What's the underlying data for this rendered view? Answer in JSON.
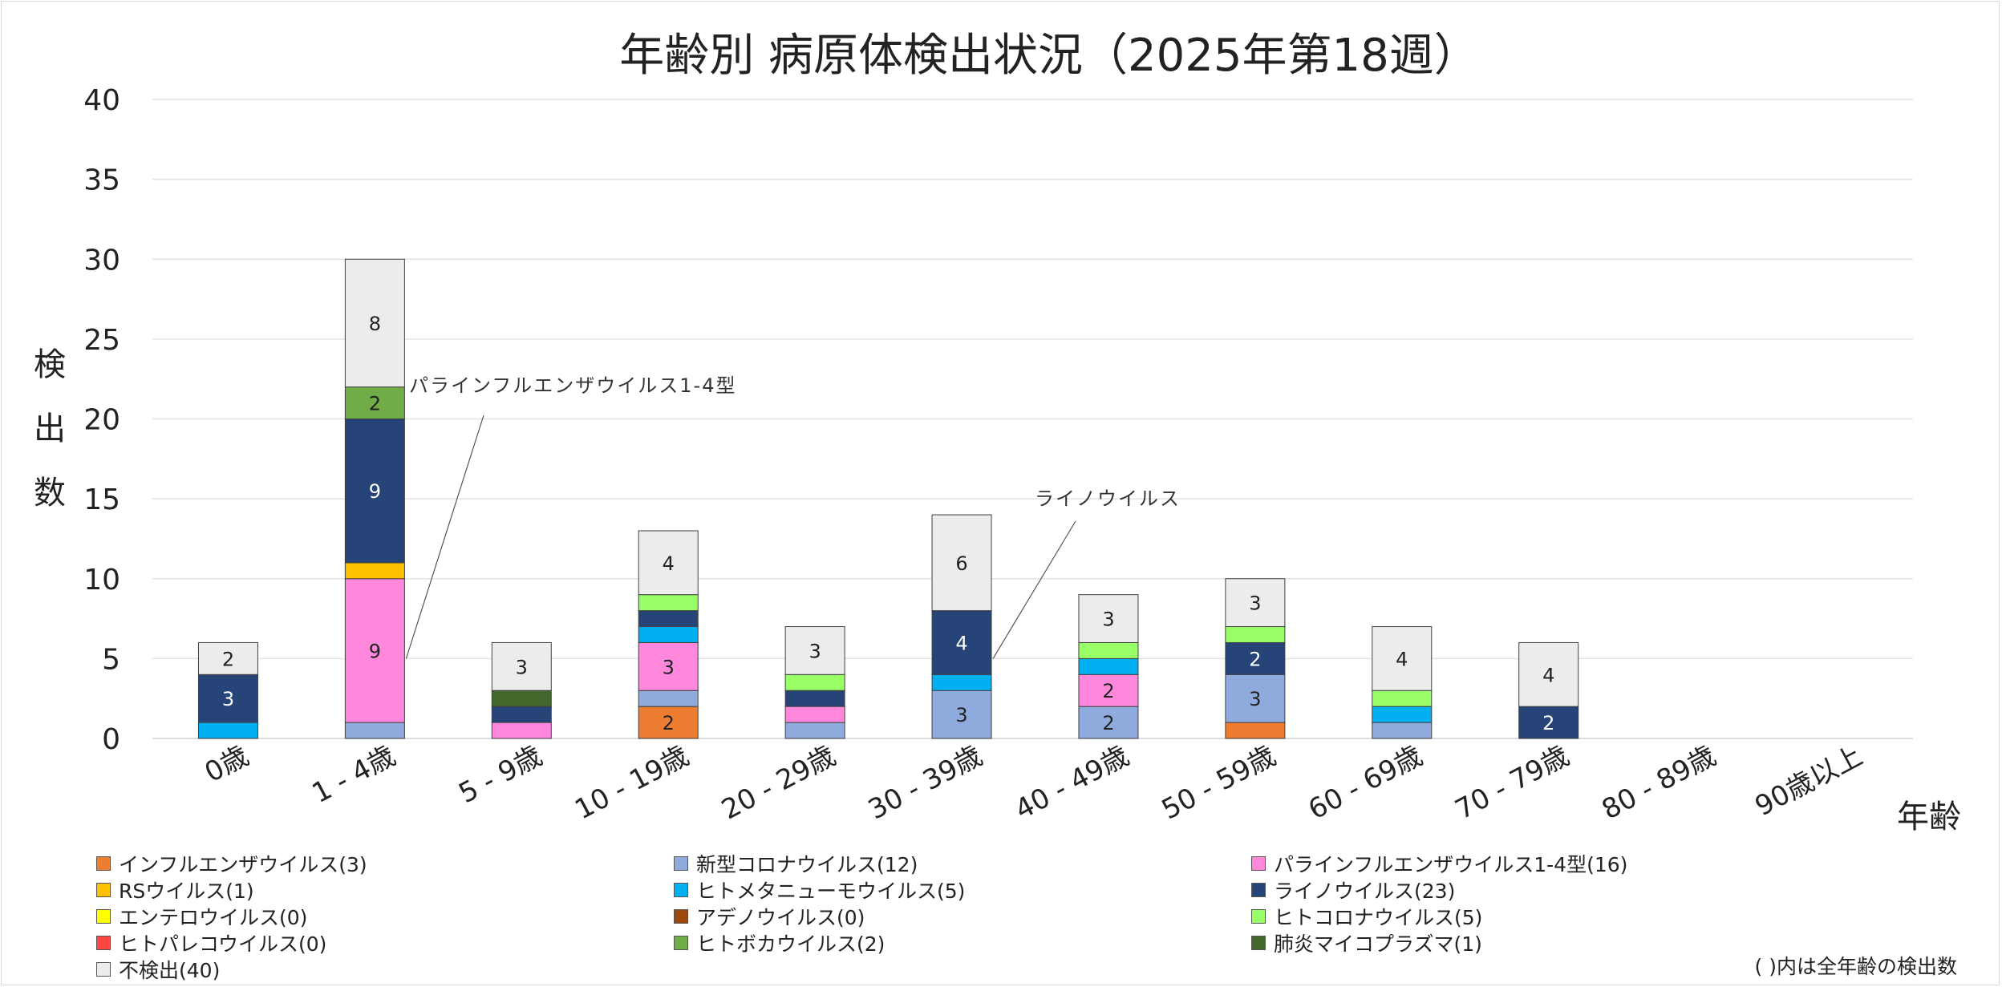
{
  "chart_data": {
    "type": "bar",
    "stacked": true,
    "title": "年齢別 病原体検出状況（2025年第18週）",
    "xlabel": "年齢",
    "ylabel": "検出数",
    "ylim": [
      0,
      40
    ],
    "yticks": [
      0,
      5,
      10,
      15,
      20,
      25,
      30,
      35,
      40
    ],
    "grid": true,
    "legend_position": "bottom",
    "categories": [
      "0歳",
      "1 - 4歳",
      "5 - 9歳",
      "10 - 19歳",
      "20 - 29歳",
      "30 - 39歳",
      "40 - 49歳",
      "50 - 59歳",
      "60 - 69歳",
      "70 - 79歳",
      "80 - 89歳",
      "90歳以上"
    ],
    "series": [
      {
        "name": "インフルエンザウイルス(3)",
        "color": "#ed7d31",
        "values": [
          0,
          0,
          0,
          2,
          0,
          0,
          0,
          1,
          0,
          0,
          0,
          0
        ]
      },
      {
        "name": "新型コロナウイルス(12)",
        "color": "#8faadc",
        "values": [
          0,
          1,
          0,
          1,
          1,
          3,
          2,
          3,
          1,
          0,
          0,
          0
        ]
      },
      {
        "name": "パラインフルエンザウイルス1-4型(16)",
        "color": "#ff88dd",
        "values": [
          0,
          9,
          1,
          3,
          1,
          0,
          2,
          0,
          0,
          0,
          0,
          0
        ]
      },
      {
        "name": "RSウイルス(1)",
        "color": "#ffc000",
        "values": [
          0,
          1,
          0,
          0,
          0,
          0,
          0,
          0,
          0,
          0,
          0,
          0
        ]
      },
      {
        "name": "ヒトメタニューモウイルス(5)",
        "color": "#00b0f0",
        "values": [
          1,
          0,
          0,
          1,
          0,
          1,
          1,
          0,
          1,
          0,
          0,
          0
        ]
      },
      {
        "name": "ライノウイルス(23)",
        "color": "#264478",
        "values": [
          3,
          9,
          1,
          1,
          1,
          4,
          0,
          2,
          0,
          2,
          0,
          0
        ]
      },
      {
        "name": "エンテロウイルス(0)",
        "color": "#ffff00",
        "values": [
          0,
          0,
          0,
          0,
          0,
          0,
          0,
          0,
          0,
          0,
          0,
          0
        ]
      },
      {
        "name": "アデノウイルス(0)",
        "color": "#9e480e",
        "values": [
          0,
          0,
          0,
          0,
          0,
          0,
          0,
          0,
          0,
          0,
          0,
          0
        ]
      },
      {
        "name": "ヒトコロナウイルス(5)",
        "color": "#99ff66",
        "values": [
          0,
          0,
          0,
          1,
          1,
          0,
          1,
          1,
          1,
          0,
          0,
          0
        ]
      },
      {
        "name": "ヒトパレコウイルス(0)",
        "color": "#ff4444",
        "values": [
          0,
          0,
          0,
          0,
          0,
          0,
          0,
          0,
          0,
          0,
          0,
          0
        ]
      },
      {
        "name": "ヒトボカウイルス(2)",
        "color": "#70ad47",
        "values": [
          0,
          2,
          0,
          0,
          0,
          0,
          0,
          0,
          0,
          0,
          0,
          0
        ]
      },
      {
        "name": "肺炎マイコプラズマ(1)",
        "color": "#43682b",
        "values": [
          0,
          0,
          1,
          0,
          0,
          0,
          0,
          0,
          0,
          0,
          0,
          0
        ]
      },
      {
        "name": "不検出(40)",
        "color": "#ececec",
        "values": [
          2,
          8,
          3,
          4,
          3,
          6,
          3,
          3,
          4,
          4,
          0,
          0
        ]
      }
    ],
    "data_labels": [
      {
        "category": 0,
        "series": 5,
        "text": "3"
      },
      {
        "category": 0,
        "series": 12,
        "text": "2"
      },
      {
        "category": 1,
        "series": 2,
        "text": "9"
      },
      {
        "category": 1,
        "series": 5,
        "text": "9"
      },
      {
        "category": 1,
        "series": 10,
        "text": "2"
      },
      {
        "category": 1,
        "series": 12,
        "text": "8"
      },
      {
        "category": 2,
        "series": 12,
        "text": "3"
      },
      {
        "category": 3,
        "series": 0,
        "text": "2"
      },
      {
        "category": 3,
        "series": 2,
        "text": "3"
      },
      {
        "category": 3,
        "series": 12,
        "text": "4"
      },
      {
        "category": 4,
        "series": 12,
        "text": "3"
      },
      {
        "category": 5,
        "series": 1,
        "text": "3"
      },
      {
        "category": 5,
        "series": 5,
        "text": "4"
      },
      {
        "category": 5,
        "series": 12,
        "text": "6"
      },
      {
        "category": 6,
        "series": 1,
        "text": "2"
      },
      {
        "category": 6,
        "series": 2,
        "text": "2"
      },
      {
        "category": 6,
        "series": 12,
        "text": "3"
      },
      {
        "category": 7,
        "series": 1,
        "text": "3"
      },
      {
        "category": 7,
        "series": 5,
        "text": "2"
      },
      {
        "category": 7,
        "series": 12,
        "text": "3"
      },
      {
        "category": 8,
        "series": 12,
        "text": "4"
      },
      {
        "category": 9,
        "series": 5,
        "text": "2"
      },
      {
        "category": 9,
        "series": 12,
        "text": "4"
      }
    ],
    "annotations": [
      {
        "text": "パラインフルエンザウイルス1-4型",
        "category": 1,
        "series": 2
      },
      {
        "text": "ライノウイルス",
        "category": 5,
        "series": 5
      }
    ],
    "footnote": "( )内は全年齢の検出数"
  }
}
